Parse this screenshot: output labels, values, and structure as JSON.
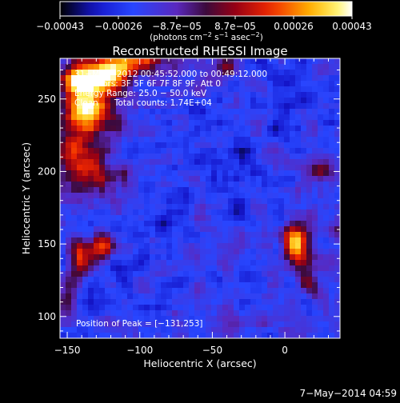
{
  "chart_data": {
    "type": "heatmap",
    "title": "Reconstructed RHESSI Image",
    "xlabel": "Heliocentric X (arcsec)",
    "ylabel": "Heliocentric Y (arcsec)",
    "xlim": [
      -155,
      38
    ],
    "ylim": [
      85,
      278
    ],
    "x_ticks": [
      {
        "value": -150,
        "label": "−150"
      },
      {
        "value": -100,
        "label": "−100"
      },
      {
        "value": -50,
        "label": "−50"
      },
      {
        "value": 0,
        "label": "0"
      }
    ],
    "y_ticks": [
      {
        "value": 100,
        "label": "100"
      },
      {
        "value": 150,
        "label": "150"
      },
      {
        "value": 200,
        "label": "200"
      },
      {
        "value": 250,
        "label": "250"
      }
    ],
    "colorbar": {
      "range": [
        -0.00043,
        0.00043
      ],
      "tick_labels": [
        "−0.00043",
        "−0.00026",
        "−8.7e−05",
        "8.7e−05",
        "0.00026",
        "0.00043"
      ],
      "units_prefix": "(photons cm",
      "units_sup1": "−2",
      "units_mid": " s",
      "units_sup2": "−1",
      "units_mid2": " asec",
      "units_sup3": "−2",
      "units_suffix": ")"
    },
    "annotations": {
      "time_range": "31−May−2012 00:45:52.000 to 00:49:12.000",
      "detectors": "Detectors: 3F 5F 6F 7F 8F 9F, Att 0",
      "energy_range": "Energy Range: 25.0 − 50.0 keV",
      "method_counts": "Clean      Total counts: 1.74E+04",
      "peak": "Position of Peak = [−131,253]"
    },
    "peak_position": [
      -131,
      253
    ],
    "sources": [
      {
        "x": -140,
        "y": 262,
        "amp": 1.0,
        "sx": 9,
        "sy": 9
      },
      {
        "x": -120,
        "y": 268,
        "amp": 0.85,
        "sx": 11,
        "sy": 8
      },
      {
        "x": -135,
        "y": 240,
        "amp": 0.75,
        "sx": 10,
        "sy": 10
      },
      {
        "x": -145,
        "y": 215,
        "amp": 0.55,
        "sx": 9,
        "sy": 12
      },
      {
        "x": -130,
        "y": 200,
        "amp": 0.5,
        "sx": 10,
        "sy": 9
      },
      {
        "x": -100,
        "y": 278,
        "amp": 0.5,
        "sx": 12,
        "sy": 6
      },
      {
        "x": 8,
        "y": 150,
        "amp": 0.85,
        "sx": 6,
        "sy": 9
      },
      {
        "x": 15,
        "y": 125,
        "amp": 0.45,
        "sx": 5,
        "sy": 6
      },
      {
        "x": -140,
        "y": 140,
        "amp": 0.55,
        "sx": 6,
        "sy": 9
      },
      {
        "x": -125,
        "y": 148,
        "amp": 0.5,
        "sx": 6,
        "sy": 8
      },
      {
        "x": -150,
        "y": 110,
        "amp": 0.4,
        "sx": 5,
        "sy": 10
      },
      {
        "x": -40,
        "y": 270,
        "amp": 0.45,
        "sx": 5,
        "sy": 5
      },
      {
        "x": 25,
        "y": 200,
        "amp": 0.35,
        "sx": 6,
        "sy": 6
      }
    ],
    "colormap": "rainbow-fire"
  },
  "footer": {
    "date": "7−May−2014 04:59"
  }
}
